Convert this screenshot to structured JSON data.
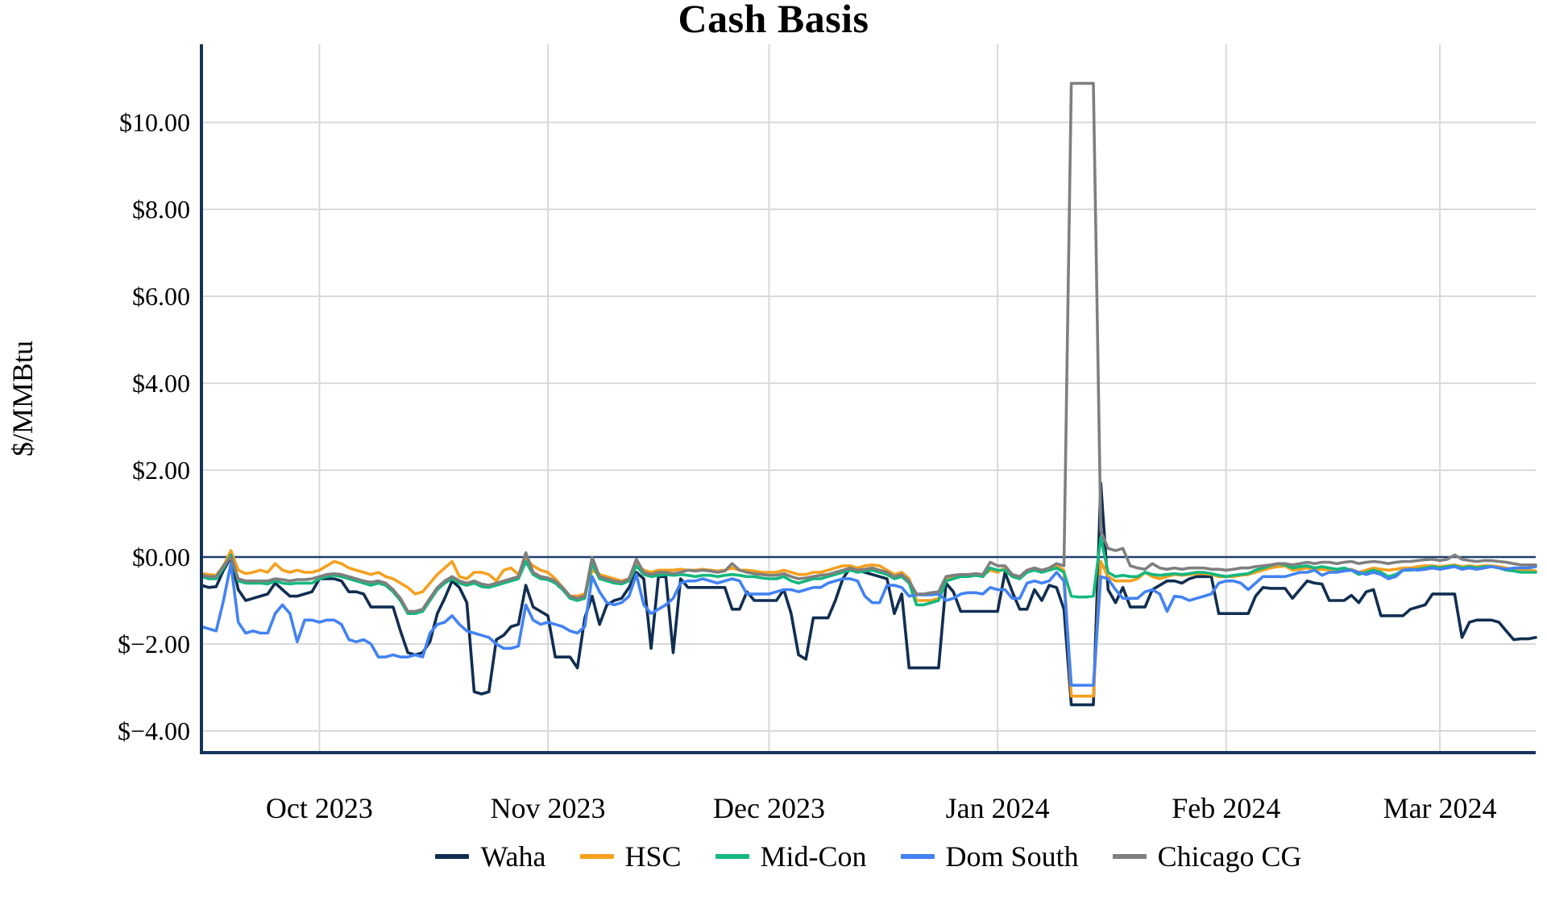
{
  "title": "Cash Basis",
  "y_axis": {
    "label": "$/MMBtu",
    "ticks": [
      {
        "value": 10,
        "label": "$10.00"
      },
      {
        "value": 8,
        "label": "$8.00"
      },
      {
        "value": 6,
        "label": "$6.00"
      },
      {
        "value": 4,
        "label": "$4.00"
      },
      {
        "value": 2,
        "label": "$2.00"
      },
      {
        "value": 0,
        "label": "$0.00"
      },
      {
        "value": -2,
        "label": "$−2.00"
      },
      {
        "value": -4,
        "label": "$−4.00"
      }
    ]
  },
  "x_axis": {
    "ticks": [
      {
        "day": 16,
        "label": "Oct 2023"
      },
      {
        "day": 47,
        "label": "Nov 2023"
      },
      {
        "day": 77,
        "label": "Dec 2023"
      },
      {
        "day": 108,
        "label": "Jan 2024"
      },
      {
        "day": 139,
        "label": "Feb 2024"
      },
      {
        "day": 168,
        "label": "Mar 2024"
      }
    ]
  },
  "colors": {
    "axis": "#14335c",
    "zero_line": "#1d3f6e",
    "grid": "#d9d9d9",
    "background": "#ffffff"
  },
  "chart_data": {
    "type": "line",
    "title": "Cash Basis",
    "ylabel": "$/MMBtu",
    "ylim": [
      -4.5,
      11.8
    ],
    "x_max_day": 181,
    "grid": true,
    "legend_position": "bottom",
    "series": [
      {
        "name": "Waha",
        "color": "#112e51",
        "values": [
          -0.65,
          -0.7,
          -0.68,
          -0.3,
          0,
          -0.75,
          -1,
          -0.95,
          -0.9,
          -0.85,
          -0.6,
          -0.75,
          -0.9,
          -0.9,
          -0.85,
          -0.8,
          -0.5,
          -0.5,
          -0.5,
          -0.55,
          -0.8,
          -0.8,
          -0.85,
          -1.15,
          -1.15,
          -1.15,
          -1.15,
          -1.7,
          -2.2,
          -2.25,
          -2.2,
          -1.95,
          -1.3,
          -0.95,
          -0.55,
          -0.7,
          -1.05,
          -3.1,
          -3.15,
          -3.1,
          -1.9,
          -1.8,
          -1.6,
          -1.55,
          -0.65,
          -1.15,
          -1.25,
          -1.35,
          -2.3,
          -2.3,
          -2.3,
          -2.55,
          -1.4,
          -0.9,
          -1.55,
          -1.1,
          -1,
          -0.95,
          -0.7,
          -0.35,
          -0.5,
          -2.1,
          -0.45,
          -0.45,
          -2.2,
          -0.5,
          -0.7,
          -0.7,
          -0.7,
          -0.7,
          -0.7,
          -0.7,
          -1.2,
          -1.2,
          -0.8,
          -1,
          -1,
          -1,
          -1,
          -0.75,
          -1.3,
          -2.25,
          -2.35,
          -1.4,
          -1.4,
          -1.4,
          -1,
          -0.5,
          -0.25,
          -0.3,
          -0.35,
          -0.4,
          -0.45,
          -0.5,
          -1.3,
          -0.85,
          -2.55,
          -2.55,
          -2.55,
          -2.55,
          -2.55,
          -0.6,
          -0.8,
          -1.25,
          -1.25,
          -1.25,
          -1.25,
          -1.25,
          -1.25,
          -0.35,
          -0.8,
          -1.2,
          -1.2,
          -0.75,
          -1,
          -0.65,
          -0.7,
          -1.2,
          -3.4,
          -3.4,
          -3.4,
          -3.4,
          1.7,
          -0.75,
          -1.05,
          -0.7,
          -1.15,
          -1.15,
          -1.15,
          -0.75,
          -0.65,
          -0.55,
          -0.55,
          -0.6,
          -0.5,
          -0.45,
          -0.45,
          -0.45,
          -1.3,
          -1.3,
          -1.3,
          -1.3,
          -1.3,
          -0.9,
          -0.7,
          -0.72,
          -0.72,
          -0.72,
          -0.95,
          -0.75,
          -0.55,
          -0.6,
          -0.62,
          -1,
          -1,
          -1,
          -0.88,
          -1.05,
          -0.8,
          -0.75,
          -1.35,
          -1.35,
          -1.35,
          -1.35,
          -1.2,
          -1.15,
          -1.1,
          -0.85,
          -0.85,
          -0.85,
          -0.85,
          -1.85,
          -1.5,
          -1.45,
          -1.45,
          -1.45,
          -1.5,
          -1.7,
          -1.9,
          -1.88,
          -1.88,
          -1.85
        ]
      },
      {
        "name": "HSC",
        "color": "#f5a01e",
        "values": [
          -0.38,
          -0.4,
          -0.42,
          -0.2,
          0.15,
          -0.3,
          -0.38,
          -0.35,
          -0.3,
          -0.35,
          -0.15,
          -0.3,
          -0.35,
          -0.3,
          -0.35,
          -0.35,
          -0.3,
          -0.2,
          -0.1,
          -0.15,
          -0.25,
          -0.3,
          -0.35,
          -0.4,
          -0.35,
          -0.45,
          -0.5,
          -0.6,
          -0.7,
          -0.85,
          -0.8,
          -0.6,
          -0.4,
          -0.25,
          -0.1,
          -0.45,
          -0.5,
          -0.35,
          -0.35,
          -0.4,
          -0.55,
          -0.3,
          -0.25,
          -0.4,
          -0.05,
          -0.2,
          -0.3,
          -0.35,
          -0.5,
          -0.7,
          -0.9,
          -0.9,
          -0.85,
          -0.3,
          -0.4,
          -0.45,
          -0.5,
          -0.55,
          -0.5,
          -0.15,
          -0.3,
          -0.35,
          -0.3,
          -0.3,
          -0.3,
          -0.28,
          -0.3,
          -0.3,
          -0.28,
          -0.3,
          -0.32,
          -0.3,
          -0.25,
          -0.3,
          -0.3,
          -0.32,
          -0.35,
          -0.35,
          -0.35,
          -0.3,
          -0.35,
          -0.4,
          -0.4,
          -0.35,
          -0.35,
          -0.3,
          -0.25,
          -0.2,
          -0.2,
          -0.25,
          -0.2,
          -0.18,
          -0.2,
          -0.3,
          -0.4,
          -0.35,
          -0.5,
          -1,
          -1,
          -1,
          -0.95,
          -0.5,
          -0.45,
          -0.42,
          -0.42,
          -0.4,
          -0.42,
          -0.3,
          -0.35,
          -0.25,
          -0.4,
          -0.45,
          -0.3,
          -0.25,
          -0.3,
          -0.28,
          -0.2,
          -0.3,
          -3.2,
          -3.2,
          -3.2,
          -3.2,
          -0.1,
          -0.45,
          -0.55,
          -0.55,
          -0.55,
          -0.5,
          -0.35,
          -0.45,
          -0.5,
          -0.45,
          -0.4,
          -0.42,
          -0.4,
          -0.38,
          -0.38,
          -0.4,
          -0.45,
          -0.45,
          -0.45,
          -0.42,
          -0.4,
          -0.35,
          -0.3,
          -0.25,
          -0.22,
          -0.2,
          -0.3,
          -0.28,
          -0.25,
          -0.3,
          -0.28,
          -0.3,
          -0.32,
          -0.3,
          -0.28,
          -0.35,
          -0.3,
          -0.25,
          -0.28,
          -0.3,
          -0.28,
          -0.25,
          -0.25,
          -0.22,
          -0.2,
          -0.2,
          -0.22,
          -0.2,
          -0.18,
          -0.22,
          -0.2,
          -0.22,
          -0.2,
          -0.2,
          -0.22,
          -0.25,
          -0.28,
          -0.3,
          -0.3,
          -0.32
        ]
      },
      {
        "name": "Mid-Con",
        "color": "#14b87d",
        "values": [
          -0.45,
          -0.5,
          -0.5,
          -0.25,
          0.05,
          -0.55,
          -0.6,
          -0.6,
          -0.6,
          -0.62,
          -0.55,
          -0.6,
          -0.62,
          -0.6,
          -0.6,
          -0.6,
          -0.5,
          -0.45,
          -0.42,
          -0.45,
          -0.5,
          -0.55,
          -0.6,
          -0.65,
          -0.6,
          -0.65,
          -0.8,
          -1,
          -1.3,
          -1.3,
          -1.25,
          -1,
          -0.75,
          -0.6,
          -0.5,
          -0.6,
          -0.65,
          -0.6,
          -0.68,
          -0.7,
          -0.65,
          -0.6,
          -0.55,
          -0.5,
          -0.1,
          -0.4,
          -0.5,
          -0.52,
          -0.6,
          -0.75,
          -0.95,
          -1,
          -0.95,
          -0.15,
          -0.5,
          -0.55,
          -0.6,
          -0.62,
          -0.55,
          -0.2,
          -0.4,
          -0.45,
          -0.42,
          -0.4,
          -0.42,
          -0.4,
          -0.42,
          -0.45,
          -0.42,
          -0.42,
          -0.45,
          -0.42,
          -0.4,
          -0.42,
          -0.45,
          -0.45,
          -0.48,
          -0.5,
          -0.5,
          -0.45,
          -0.55,
          -0.6,
          -0.55,
          -0.5,
          -0.5,
          -0.45,
          -0.4,
          -0.35,
          -0.3,
          -0.35,
          -0.32,
          -0.3,
          -0.35,
          -0.4,
          -0.5,
          -0.45,
          -0.6,
          -1.1,
          -1.1,
          -1.05,
          -1,
          -0.55,
          -0.5,
          -0.45,
          -0.45,
          -0.42,
          -0.45,
          -0.25,
          -0.3,
          -0.3,
          -0.45,
          -0.5,
          -0.35,
          -0.3,
          -0.35,
          -0.3,
          -0.25,
          -0.35,
          -0.9,
          -0.92,
          -0.92,
          -0.9,
          0.45,
          -0.35,
          -0.45,
          -0.42,
          -0.45,
          -0.45,
          -0.35,
          -0.4,
          -0.42,
          -0.4,
          -0.38,
          -0.4,
          -0.38,
          -0.35,
          -0.35,
          -0.38,
          -0.42,
          -0.45,
          -0.42,
          -0.4,
          -0.38,
          -0.3,
          -0.25,
          -0.2,
          -0.15,
          -0.18,
          -0.25,
          -0.22,
          -0.2,
          -0.25,
          -0.22,
          -0.25,
          -0.28,
          -0.25,
          -0.3,
          -0.4,
          -0.35,
          -0.3,
          -0.35,
          -0.45,
          -0.4,
          -0.3,
          -0.3,
          -0.28,
          -0.25,
          -0.22,
          -0.25,
          -0.22,
          -0.2,
          -0.25,
          -0.22,
          -0.25,
          -0.22,
          -0.22,
          -0.25,
          -0.3,
          -0.32,
          -0.35,
          -0.35,
          -0.35
        ]
      },
      {
        "name": "Dom South",
        "color": "#4282f3",
        "values": [
          -1.6,
          -1.65,
          -1.7,
          -1,
          -0.15,
          -1.5,
          -1.75,
          -1.7,
          -1.75,
          -1.75,
          -1.3,
          -1.1,
          -1.3,
          -1.95,
          -1.45,
          -1.45,
          -1.5,
          -1.45,
          -1.45,
          -1.55,
          -1.9,
          -1.95,
          -1.9,
          -2,
          -2.3,
          -2.3,
          -2.25,
          -2.3,
          -2.3,
          -2.25,
          -2.3,
          -1.75,
          -1.55,
          -1.5,
          -1.35,
          -1.55,
          -1.7,
          -1.75,
          -1.8,
          -1.85,
          -2,
          -2.1,
          -2.1,
          -2.05,
          -1.1,
          -1.45,
          -1.55,
          -1.5,
          -1.55,
          -1.6,
          -1.7,
          -1.75,
          -1.6,
          -0.45,
          -0.8,
          -1.05,
          -1.1,
          -1.05,
          -0.9,
          -0.4,
          -1.1,
          -1.3,
          -1.2,
          -1.1,
          -0.95,
          -0.6,
          -0.55,
          -0.55,
          -0.5,
          -0.55,
          -0.6,
          -0.55,
          -0.5,
          -0.55,
          -0.85,
          -0.85,
          -0.85,
          -0.85,
          -0.8,
          -0.75,
          -0.75,
          -0.8,
          -0.75,
          -0.7,
          -0.7,
          -0.6,
          -0.55,
          -0.5,
          -0.5,
          -0.55,
          -0.9,
          -1.05,
          -1.05,
          -0.65,
          -0.65,
          -0.7,
          -0.9,
          -0.87,
          -0.87,
          -0.87,
          -0.85,
          -1,
          -0.95,
          -0.85,
          -0.82,
          -0.82,
          -0.85,
          -0.7,
          -0.75,
          -0.75,
          -0.95,
          -0.95,
          -0.6,
          -0.55,
          -0.6,
          -0.55,
          -0.35,
          -0.55,
          -2.95,
          -2.95,
          -2.95,
          -2.95,
          -0.45,
          -0.5,
          -0.75,
          -0.95,
          -0.95,
          -0.95,
          -0.8,
          -0.75,
          -0.85,
          -1.25,
          -0.9,
          -0.92,
          -1,
          -0.95,
          -0.9,
          -0.85,
          -0.6,
          -0.55,
          -0.55,
          -0.6,
          -0.75,
          -0.6,
          -0.45,
          -0.45,
          -0.45,
          -0.45,
          -0.4,
          -0.35,
          -0.35,
          -0.3,
          -0.42,
          -0.35,
          -0.35,
          -0.32,
          -0.3,
          -0.35,
          -0.4,
          -0.35,
          -0.4,
          -0.5,
          -0.45,
          -0.3,
          -0.28,
          -0.3,
          -0.28,
          -0.25,
          -0.28,
          -0.25,
          -0.22,
          -0.28,
          -0.25,
          -0.28,
          -0.25,
          -0.22,
          -0.25,
          -0.28,
          -0.25,
          -0.25,
          -0.25,
          -0.22
        ]
      },
      {
        "name": "Chicago CG",
        "color": "#7f7f7f",
        "values": [
          -0.42,
          -0.45,
          -0.45,
          -0.2,
          0,
          -0.5,
          -0.55,
          -0.55,
          -0.55,
          -0.55,
          -0.5,
          -0.52,
          -0.55,
          -0.52,
          -0.52,
          -0.5,
          -0.45,
          -0.4,
          -0.38,
          -0.4,
          -0.45,
          -0.5,
          -0.55,
          -0.58,
          -0.55,
          -0.6,
          -0.75,
          -0.95,
          -1.25,
          -1.25,
          -1.2,
          -0.95,
          -0.7,
          -0.55,
          -0.45,
          -0.55,
          -0.6,
          -0.55,
          -0.62,
          -0.65,
          -0.6,
          -0.55,
          -0.5,
          -0.45,
          0.1,
          -0.35,
          -0.45,
          -0.48,
          -0.55,
          -0.7,
          -0.9,
          -0.95,
          -0.9,
          0,
          -0.45,
          -0.5,
          -0.55,
          -0.58,
          -0.5,
          -0.05,
          -0.35,
          -0.4,
          -0.35,
          -0.35,
          -0.38,
          -0.35,
          -0.3,
          -0.32,
          -0.3,
          -0.32,
          -0.35,
          -0.32,
          -0.15,
          -0.3,
          -0.35,
          -0.38,
          -0.4,
          -0.42,
          -0.42,
          -0.38,
          -0.45,
          -0.5,
          -0.48,
          -0.45,
          -0.42,
          -0.4,
          -0.35,
          -0.3,
          -0.25,
          -0.3,
          -0.28,
          -0.25,
          -0.3,
          -0.35,
          -0.45,
          -0.4,
          -0.55,
          -0.85,
          -0.85,
          -0.82,
          -0.8,
          -0.45,
          -0.42,
          -0.4,
          -0.4,
          -0.38,
          -0.4,
          -0.12,
          -0.2,
          -0.2,
          -0.4,
          -0.45,
          -0.3,
          -0.25,
          -0.3,
          -0.25,
          -0.15,
          -0.2,
          10.9,
          10.9,
          10.9,
          10.9,
          0.6,
          0.2,
          0.15,
          0.2,
          -0.2,
          -0.25,
          -0.28,
          -0.15,
          -0.25,
          -0.28,
          -0.25,
          -0.28,
          -0.25,
          -0.25,
          -0.25,
          -0.28,
          -0.28,
          -0.3,
          -0.28,
          -0.25,
          -0.25,
          -0.22,
          -0.2,
          -0.18,
          -0.15,
          -0.15,
          -0.18,
          -0.15,
          -0.12,
          -0.15,
          -0.12,
          -0.12,
          -0.15,
          -0.12,
          -0.1,
          -0.15,
          -0.12,
          -0.1,
          -0.12,
          -0.15,
          -0.12,
          -0.1,
          -0.1,
          -0.08,
          -0.06,
          -0.05,
          -0.08,
          -0.05,
          0.05,
          -0.05,
          -0.08,
          -0.1,
          -0.08,
          -0.08,
          -0.1,
          -0.12,
          -0.15,
          -0.18,
          -0.18,
          -0.18
        ]
      }
    ]
  }
}
